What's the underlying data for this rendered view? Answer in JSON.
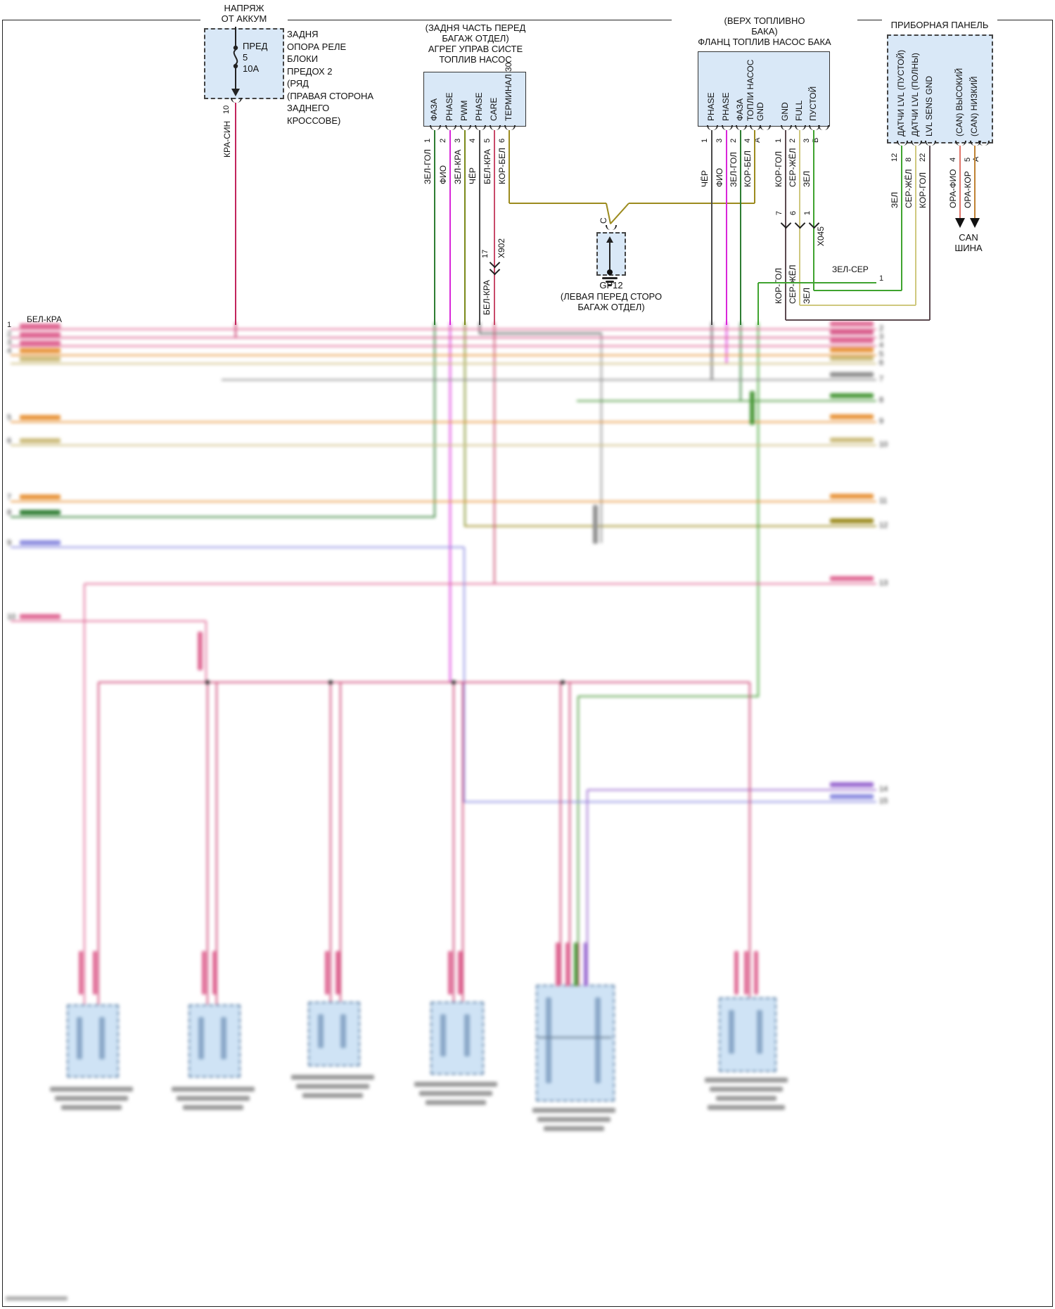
{
  "palette": {
    "crimson": "#c2255c",
    "pink": "#e06a95",
    "pink2": "#d95f8d",
    "rose": "#c84a6a",
    "orange": "#e8943a",
    "tan": "#cdbd7d",
    "gray_wire": "#4a4a4a",
    "gray_blur": "#8f8f8f",
    "green_dark": "#2e7d32",
    "green_bright": "#3fa32f",
    "green_blur": "#4c9a3c",
    "olive": "#9c8b1e",
    "olive_green": "#7a8a1a",
    "magenta": "#d926d9",
    "pale_yellow": "#cfc87e",
    "kor_gol": "#5c4a50",
    "ora_fio": "#e0756a",
    "ora_kor": "#bf8233",
    "periwinkle": "#8d8de0",
    "purple": "#9a6ad0",
    "box_fill": "#d9e8f7"
  },
  "fuse_block": {
    "title_lines": [
      "НАПРЯЖ",
      "ОТ АККУМ"
    ],
    "fuse_lines": [
      "ПРЕД",
      "5",
      "10А"
    ],
    "note_lines": [
      "ЗАДНЯ",
      "ОПОРА РЕЛЕ",
      "БЛОКИ",
      "ПРЕДОХ 2",
      "(РЯД",
      "(ПРАВАЯ СТОРОНА",
      "ЗАДНЕГО",
      "КРОССОВЕ)"
    ],
    "pin": "10",
    "wire_label": "КРА-СИН"
  },
  "pump_module": {
    "title_lines": [
      "(ЗАДНЯ ЧАСТЬ ПЕРЕД",
      "БАГАЖ ОТДЕЛ)",
      "АГРЕГ УПРАВ СИСТЕ",
      "ТОПЛИВ НАСОС"
    ],
    "pin_labels": [
      "ФАЗА",
      "PHASE",
      "PWM",
      "PHASE",
      "CARE",
      "ТЕРМИНАЛ 30"
    ],
    "pins": [
      "1",
      "2",
      "3",
      "4",
      "5",
      "6"
    ],
    "wire_labels": [
      "ЗЕЛ-ГОЛ",
      "ФИО",
      "ЗЕЛ-КРА",
      "ЧЁР",
      "БЕЛ-КРА",
      "КОР-БЕЛ"
    ]
  },
  "x902": {
    "name": "X902",
    "pin": "17",
    "wire": "БЕЛ-КРА"
  },
  "gp12": {
    "pin": "C",
    "name": "GP12",
    "note_lines": [
      "(ЛЕВАЯ ПЕРЕД СТОРО",
      "БАГАЖ ОТДЕЛ)"
    ]
  },
  "tank_flange": {
    "title_lines": [
      "(ВЕРХ ТОПЛИВНО",
      "БАКА)",
      "ФЛАНЦ ТОПЛИВ НАСОС БАКА"
    ],
    "pin_labels": [
      "PHASE",
      "PHASE",
      "ФАЗА",
      "ТОПЛИ НАСОС",
      "GND",
      "GND",
      "FULL",
      "ПУСТОЙ"
    ],
    "pins": [
      "1",
      "3",
      "2",
      "4",
      "А",
      "1",
      "2",
      "3",
      "В"
    ],
    "wire_labels": [
      "ЧЁР",
      "ФИО",
      "ЗЕЛ-ГОЛ",
      "КОР-БЕЛ",
      "КОР-ГОЛ",
      "СЕР-ЖЁЛ",
      "ЗЕЛ"
    ]
  },
  "x045": {
    "name": "X045",
    "pins": [
      "7",
      "6",
      "1"
    ],
    "wire_labels": [
      "КОР-ГОЛ",
      "СЕР-ЖЁЛ",
      "ЗЕЛ"
    ]
  },
  "instrument_panel": {
    "title": "ПРИБОРНАЯ ПАНЕЛЬ",
    "pin_labels": [
      "ДАТЧИ LVL (ПУСТОЙ)",
      "ДАТЧИ LVL (ПОЛНЫ)",
      "LVL SENS GND",
      "(CAN) ВЫСОКИЙ",
      "(CAN) НИЗКИЙ"
    ],
    "pins": [
      "12",
      "8",
      "22",
      "4",
      "5",
      "А"
    ],
    "wire_labels": [
      "ЗЕЛ",
      "СЕР-ЖЁЛ",
      "КОР-ГОЛ",
      "ОРА-ФИО",
      "ОРА-КОР"
    ],
    "can_lines": [
      "CAN",
      "ШИНА"
    ]
  },
  "nets": {
    "bel_kra": "БЕЛ-КРА",
    "bel_kra_num": "1",
    "zel_ser": "ЗЕЛ-СЕР",
    "zel_ser_num": "1"
  },
  "margins": {
    "left": [
      "2",
      "3",
      "4",
      "5",
      "6",
      "7",
      "8",
      "9",
      "10"
    ],
    "right": [
      "2",
      "3",
      "4",
      "5",
      "6",
      "7",
      "8",
      "9",
      "10",
      "11",
      "12",
      "13",
      "14",
      "15"
    ]
  }
}
